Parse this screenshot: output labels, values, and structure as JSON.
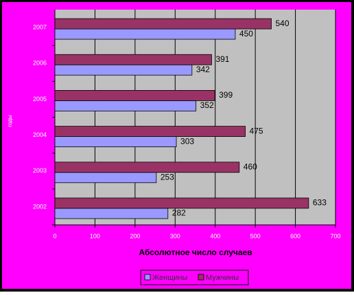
{
  "chart_data": {
    "type": "bar",
    "orientation": "horizontal",
    "x_label": "Абсолютное число случаев",
    "y_label": "годы",
    "categories": [
      "2002",
      "2003",
      "2004",
      "2005",
      "2006",
      "2007"
    ],
    "series": [
      {
        "name": "Женщины",
        "color": "#9999ff",
        "values": [
          282,
          253,
          303,
          352,
          342,
          450
        ]
      },
      {
        "name": "Мужчины",
        "color": "#993366",
        "values": [
          633,
          460,
          475,
          399,
          391,
          540
        ]
      }
    ],
    "xlim": [
      0,
      700
    ],
    "xticks": [
      0,
      100,
      200,
      300,
      400,
      500,
      600,
      700
    ],
    "grid": true,
    "legend": "bottom"
  }
}
